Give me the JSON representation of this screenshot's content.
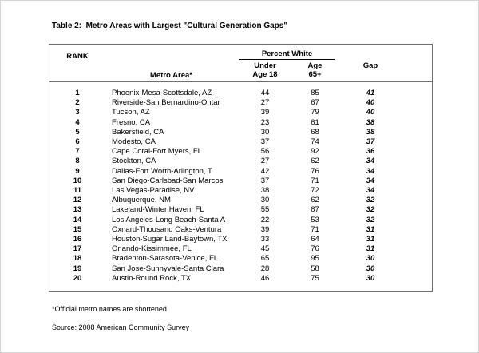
{
  "title": "Table 2:  Metro Areas with Largest \"Cultural Generation Gaps\"",
  "table": {
    "headers": {
      "rank": "RANK",
      "metro": "Metro Area*",
      "percent_white": "Percent White",
      "under_line1": "Under",
      "under_line2": "Age 18",
      "age_line1": "Age",
      "age_line2": "65+",
      "gap": "Gap"
    },
    "rows": [
      {
        "rank": "1",
        "metro": "Phoenix-Mesa-Scottsdale, AZ",
        "under18": "44",
        "age65": "85",
        "gap": "41"
      },
      {
        "rank": "2",
        "metro": "Riverside-San Bernardino-Ontar",
        "under18": "27",
        "age65": "67",
        "gap": "40"
      },
      {
        "rank": "3",
        "metro": "Tucson, AZ",
        "under18": "39",
        "age65": "79",
        "gap": "40"
      },
      {
        "rank": "4",
        "metro": "Fresno, CA",
        "under18": "23",
        "age65": "61",
        "gap": "38"
      },
      {
        "rank": "5",
        "metro": "Bakersfield, CA",
        "under18": "30",
        "age65": "68",
        "gap": "38"
      },
      {
        "rank": "6",
        "metro": "Modesto, CA",
        "under18": "37",
        "age65": "74",
        "gap": "37"
      },
      {
        "rank": "7",
        "metro": "Cape Coral-Fort Myers, FL",
        "under18": "56",
        "age65": "92",
        "gap": "36"
      },
      {
        "rank": "8",
        "metro": "Stockton, CA",
        "under18": "27",
        "age65": "62",
        "gap": "34"
      },
      {
        "rank": "9",
        "metro": "Dallas-Fort Worth-Arlington, T",
        "under18": "42",
        "age65": "76",
        "gap": "34"
      },
      {
        "rank": "10",
        "metro": "San Diego-Carlsbad-San Marcos",
        "under18": "37",
        "age65": "71",
        "gap": "34"
      },
      {
        "rank": "11",
        "metro": "Las Vegas-Paradise, NV",
        "under18": "38",
        "age65": "72",
        "gap": "34"
      },
      {
        "rank": "12",
        "metro": "Albuquerque, NM",
        "under18": "30",
        "age65": "62",
        "gap": "32"
      },
      {
        "rank": "13",
        "metro": "Lakeland-Winter Haven, FL",
        "under18": "55",
        "age65": "87",
        "gap": "32"
      },
      {
        "rank": "14",
        "metro": "Los Angeles-Long Beach-Santa A",
        "under18": "22",
        "age65": "53",
        "gap": "32"
      },
      {
        "rank": "15",
        "metro": "Oxnard-Thousand Oaks-Ventura",
        "under18": "39",
        "age65": "71",
        "gap": "31"
      },
      {
        "rank": "16",
        "metro": "Houston-Sugar Land-Baytown, TX",
        "under18": "33",
        "age65": "64",
        "gap": "31"
      },
      {
        "rank": "17",
        "metro": "Orlando-Kissimmee, FL",
        "under18": "45",
        "age65": "76",
        "gap": "31"
      },
      {
        "rank": "18",
        "metro": "Bradenton-Sarasota-Venice, FL",
        "under18": "65",
        "age65": "95",
        "gap": "30"
      },
      {
        "rank": "19",
        "metro": "San Jose-Sunnyvale-Santa Clara",
        "under18": "28",
        "age65": "58",
        "gap": "30"
      },
      {
        "rank": "20",
        "metro": "Austin-Round Rock, TX",
        "under18": "46",
        "age65": "75",
        "gap": "30"
      }
    ]
  },
  "footnote": "*Official metro names are shortened",
  "source": "Source: 2008 American Community Survey"
}
